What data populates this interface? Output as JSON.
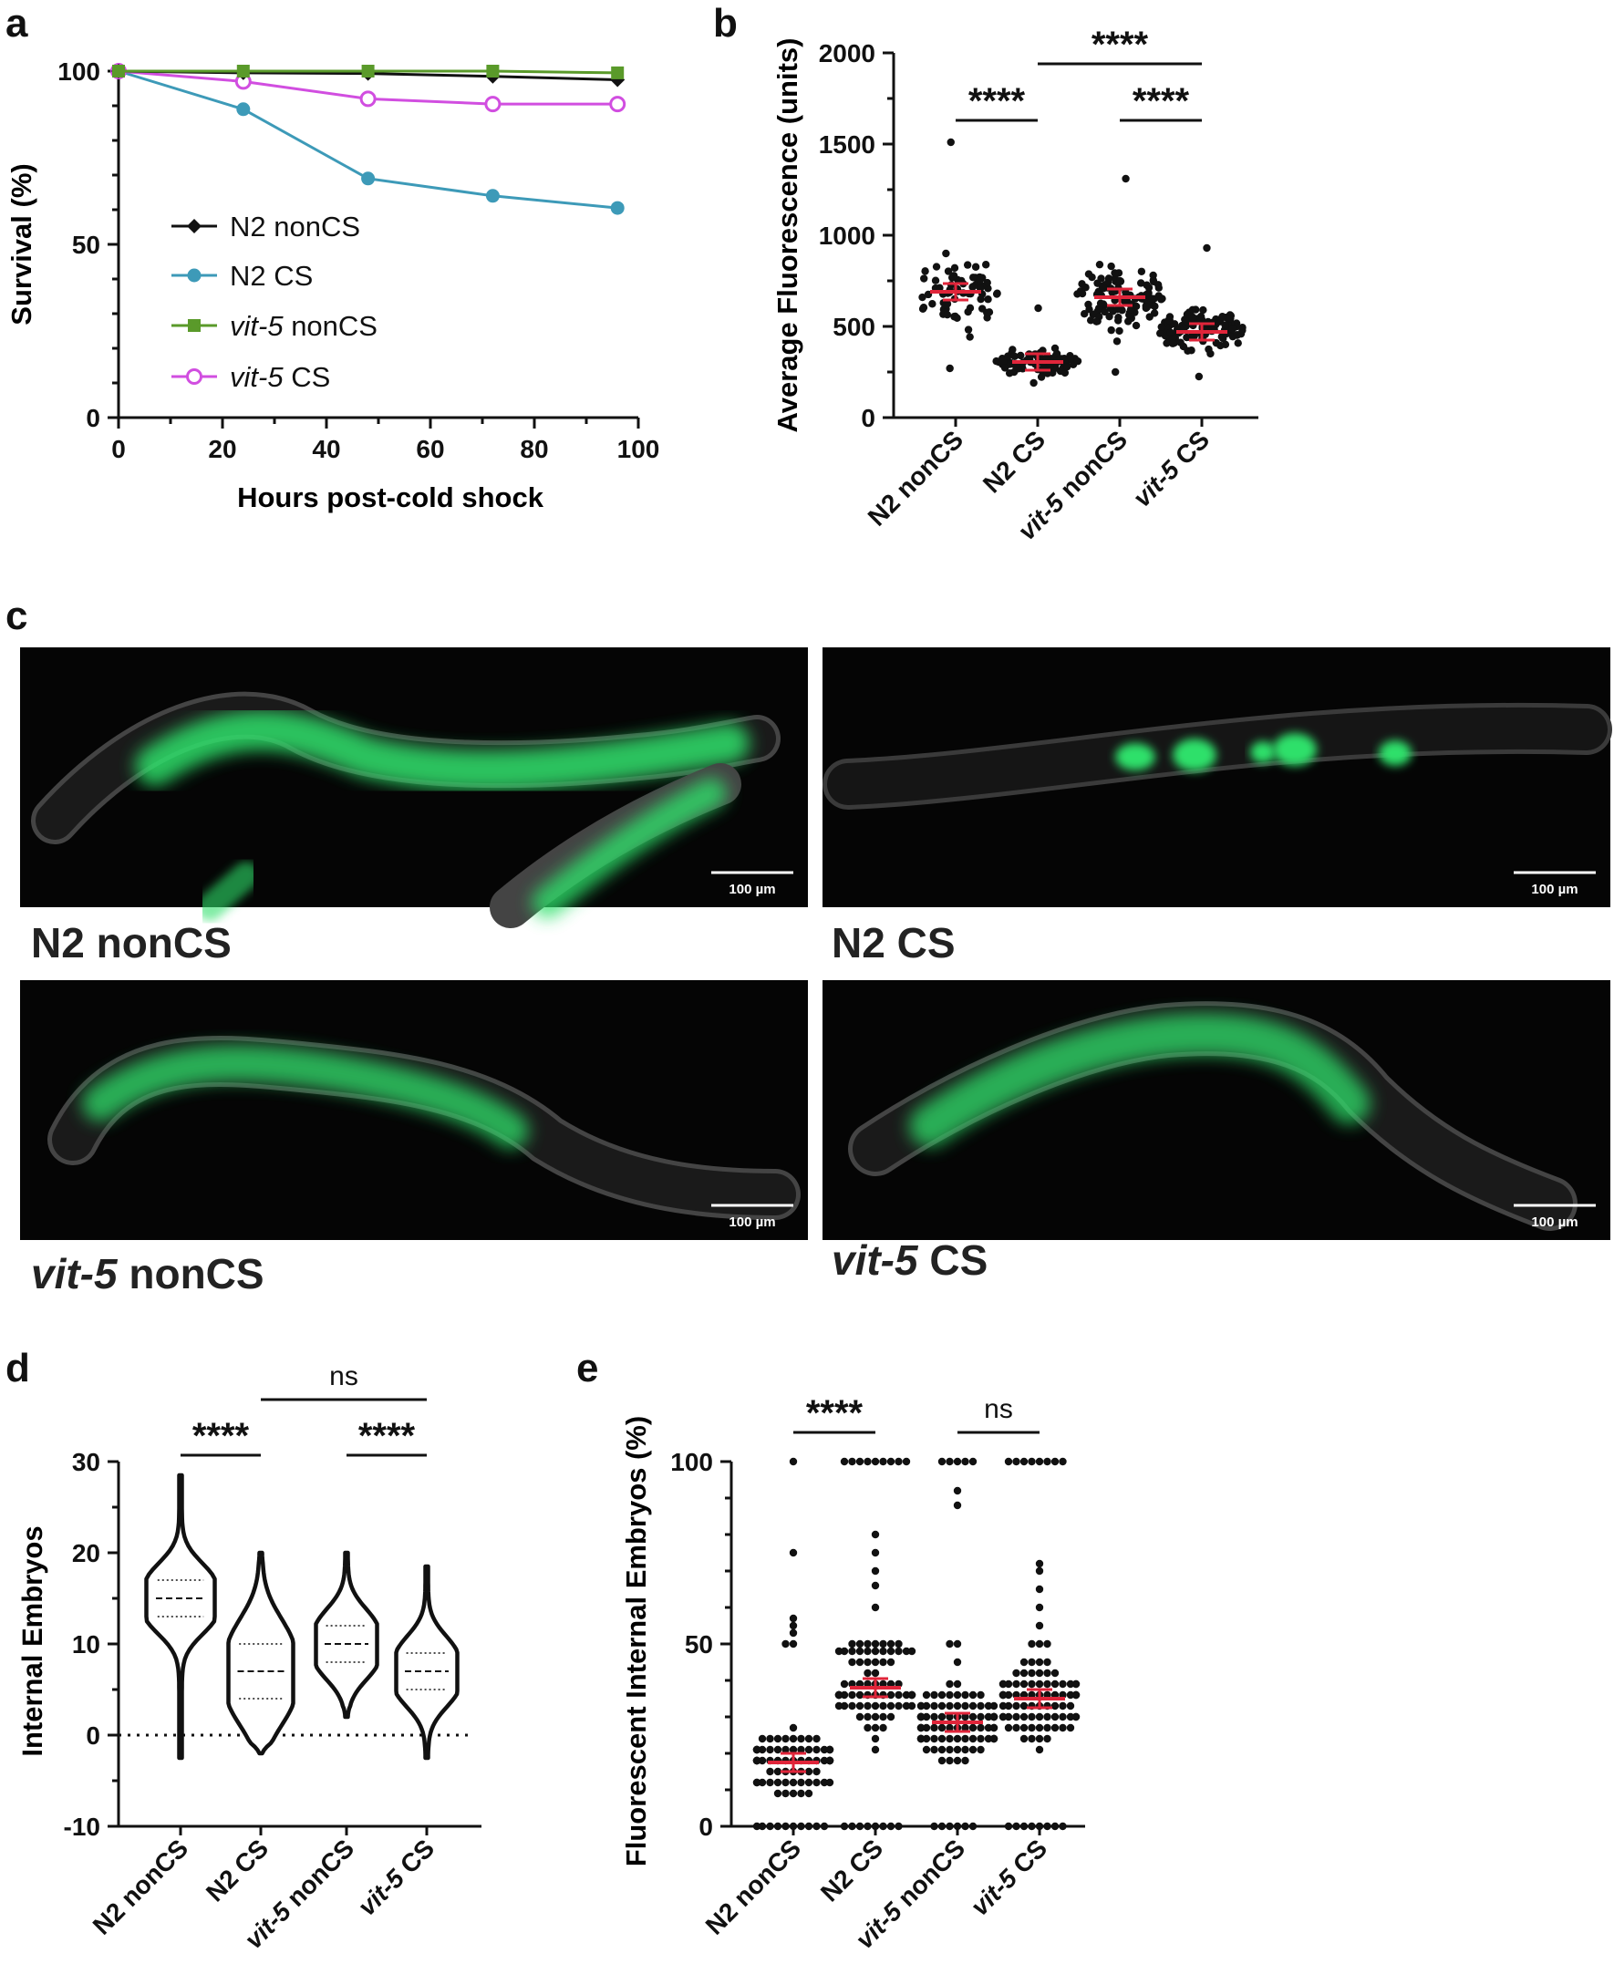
{
  "panel_letters": {
    "a": "a",
    "b": "b",
    "c": "c",
    "d": "d",
    "e": "e"
  },
  "chart_data": [
    {
      "panel": "a",
      "type": "line",
      "xlabel": "Hours post-cold shock",
      "ylabel": "Survival (%)",
      "xlim": [
        0,
        100
      ],
      "ylim": [
        0,
        100
      ],
      "xticks": [
        "0",
        "20",
        "40",
        "60",
        "80",
        "100"
      ],
      "yticks": [
        "0",
        "50",
        "100"
      ],
      "series": [
        {
          "name": "N2 nonCS",
          "name_main": "N2",
          "name_rest": " nonCS",
          "color": "#111111",
          "marker": "diamond",
          "x": [
            0,
            24,
            48,
            72,
            96
          ],
          "values": [
            100,
            99.5,
            99.3,
            98.5,
            97.5
          ]
        },
        {
          "name": "N2 CS",
          "name_main": "N2",
          "name_rest": " CS",
          "color": "#3d9ab8",
          "marker": "circle",
          "x": [
            0,
            24,
            48,
            72,
            96
          ],
          "values": [
            100,
            89,
            69,
            64,
            60.5
          ]
        },
        {
          "name": "vit-5 nonCS",
          "name_main": "vit-5",
          "name_rest": " nonCS",
          "color": "#5a9a2a",
          "marker": "square",
          "x": [
            0,
            24,
            48,
            72,
            96
          ],
          "values": [
            100,
            100,
            100,
            100,
            99.5
          ]
        },
        {
          "name": "vit-5 CS",
          "name_main": "vit-5",
          "name_rest": " CS",
          "color": "#d14ee0",
          "marker": "open-circle",
          "x": [
            0,
            24,
            48,
            72,
            96
          ],
          "values": [
            100,
            97,
            92,
            90.5,
            90.5
          ]
        }
      ]
    },
    {
      "panel": "b",
      "type": "scatter",
      "ylabel": "Average Fluorescence (units)",
      "ylim": [
        0,
        2000
      ],
      "yticks": [
        "0",
        "500",
        "1000",
        "1500",
        "2000"
      ],
      "categories": [
        "N2 nonCS",
        "N2 CS",
        "vit-5 nonCS",
        "vit-5 CS"
      ],
      "means": [
        690,
        305,
        660,
        470
      ],
      "ranges": [
        [
          270,
          1510
        ],
        [
          190,
          600
        ],
        [
          250,
          1310
        ],
        [
          225,
          930
        ]
      ],
      "n": [
        70,
        90,
        110,
        120
      ],
      "significance": [
        {
          "from": 1,
          "to": 3,
          "label": "****"
        },
        {
          "from": 0,
          "to": 1,
          "label": "****"
        },
        {
          "from": 2,
          "to": 3,
          "label": "****"
        }
      ]
    },
    {
      "panel": "d",
      "type": "violin",
      "ylabel": "Internal Embryos",
      "ylim": [
        -10,
        30
      ],
      "yticks": [
        "-10",
        "0",
        "10",
        "20",
        "30"
      ],
      "categories": [
        "N2 nonCS",
        "N2 CS",
        "vit-5 nonCS",
        "vit-5 CS"
      ],
      "medians": [
        15,
        7,
        10,
        7
      ],
      "quartiles": [
        [
          13,
          17
        ],
        [
          4,
          10
        ],
        [
          8,
          12
        ],
        [
          5,
          9
        ]
      ],
      "ranges": [
        [
          -2.5,
          28.5
        ],
        [
          -2,
          20
        ],
        [
          2,
          20
        ],
        [
          -2.5,
          18.5
        ]
      ],
      "significance": [
        {
          "from": 1,
          "to": 3,
          "label": "ns"
        },
        {
          "from": 0,
          "to": 1,
          "label": "****"
        },
        {
          "from": 2,
          "to": 3,
          "label": "****"
        }
      ]
    },
    {
      "panel": "e",
      "type": "scatter",
      "ylabel": "Fluorescent Internal Embryos (%)",
      "ylim": [
        0,
        100
      ],
      "yticks": [
        "0",
        "50",
        "100"
      ],
      "categories": [
        "N2 nonCS",
        "N2 CS",
        "vit-5 nonCS",
        "vit-5 CS"
      ],
      "means": [
        17.5,
        38,
        28.5,
        35
      ],
      "n": [
        85,
        95,
        100,
        100
      ],
      "significance": [
        {
          "from": 0,
          "to": 1,
          "label": "****"
        },
        {
          "from": 2,
          "to": 3,
          "label": "ns"
        }
      ]
    }
  ],
  "category_labels": [
    {
      "main": "N2",
      "rest": " nonCS"
    },
    {
      "main": "N2",
      "rest": " CS"
    },
    {
      "main": "vit-5",
      "rest": " nonCS"
    },
    {
      "main": "vit-5",
      "rest": " CS"
    }
  ],
  "micrographs": {
    "scale_bar": "100 µm",
    "captions": [
      {
        "main": "N2",
        "rest": " nonCS"
      },
      {
        "main": "N2",
        "rest": " CS"
      },
      {
        "main": "vit-5",
        "rest": " nonCS"
      },
      {
        "main": "vit-5",
        "rest": " CS"
      }
    ]
  },
  "colors": {
    "mean_bar": "#e0253a",
    "points": "#111111",
    "worm_green": "#2ee06a"
  }
}
